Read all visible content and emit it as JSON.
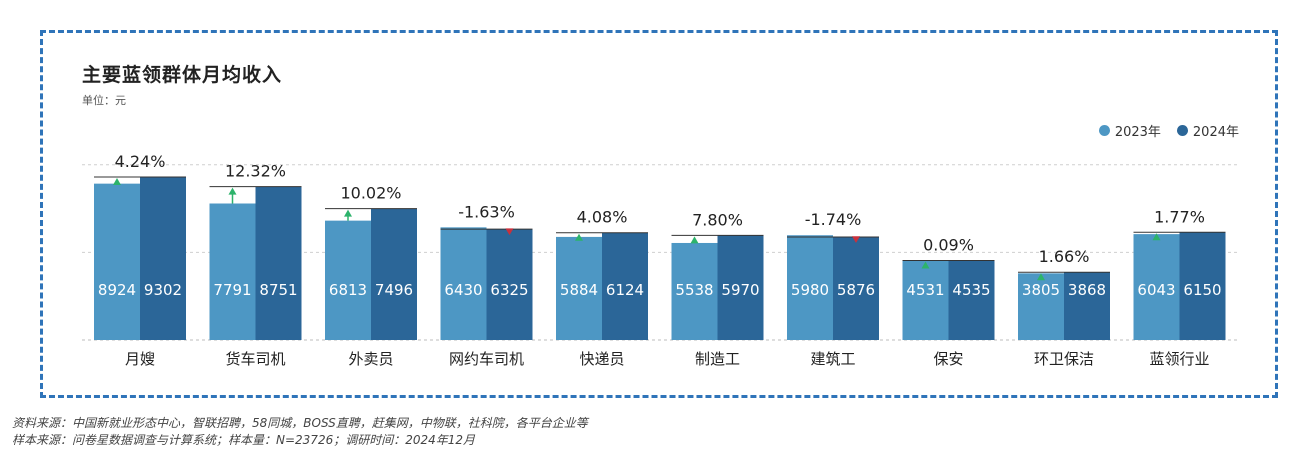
{
  "chart_data": {
    "type": "bar",
    "title": "主要蓝领群体月均收入",
    "unit_label": "单位：元",
    "categories": [
      "月嫂",
      "货车司机",
      "外卖员",
      "网约车司机",
      "快递员",
      "制造工",
      "建筑工",
      "保安",
      "环卫保洁",
      "蓝领行业"
    ],
    "series": [
      {
        "name": "2023年",
        "values": [
          8924,
          7791,
          6813,
          6430,
          5884,
          5538,
          5980,
          4531,
          3805,
          6043
        ]
      },
      {
        "name": "2024年",
        "values": [
          9302,
          8751,
          7496,
          6325,
          6124,
          5970,
          5876,
          4535,
          3868,
          6150
        ]
      }
    ],
    "growth_labels": [
      "4.24%",
      "12.32%",
      "10.02%",
      "-1.63%",
      "4.08%",
      "7.80%",
      "-1.74%",
      "0.09%",
      "1.66%",
      "1.77%"
    ],
    "legend_position": "top-right",
    "grid": true,
    "ylim": [
      0,
      10000
    ]
  },
  "colors": {
    "series_2023": "#4d97c4",
    "series_2024": "#2b6698",
    "arrow_up": "#2db36b",
    "arrow_down": "#c9313d",
    "frame": "#2f74b9"
  },
  "footnotes": {
    "source": "资料来源：中国新就业形态中心，智联招聘，58同城，BOSS直聘，赶集网，中物联，社科院，各平台企业等",
    "sample": "样本来源：问卷星数据调查与计算系统；样本量：N=23726；调研时间：2024年12月"
  }
}
